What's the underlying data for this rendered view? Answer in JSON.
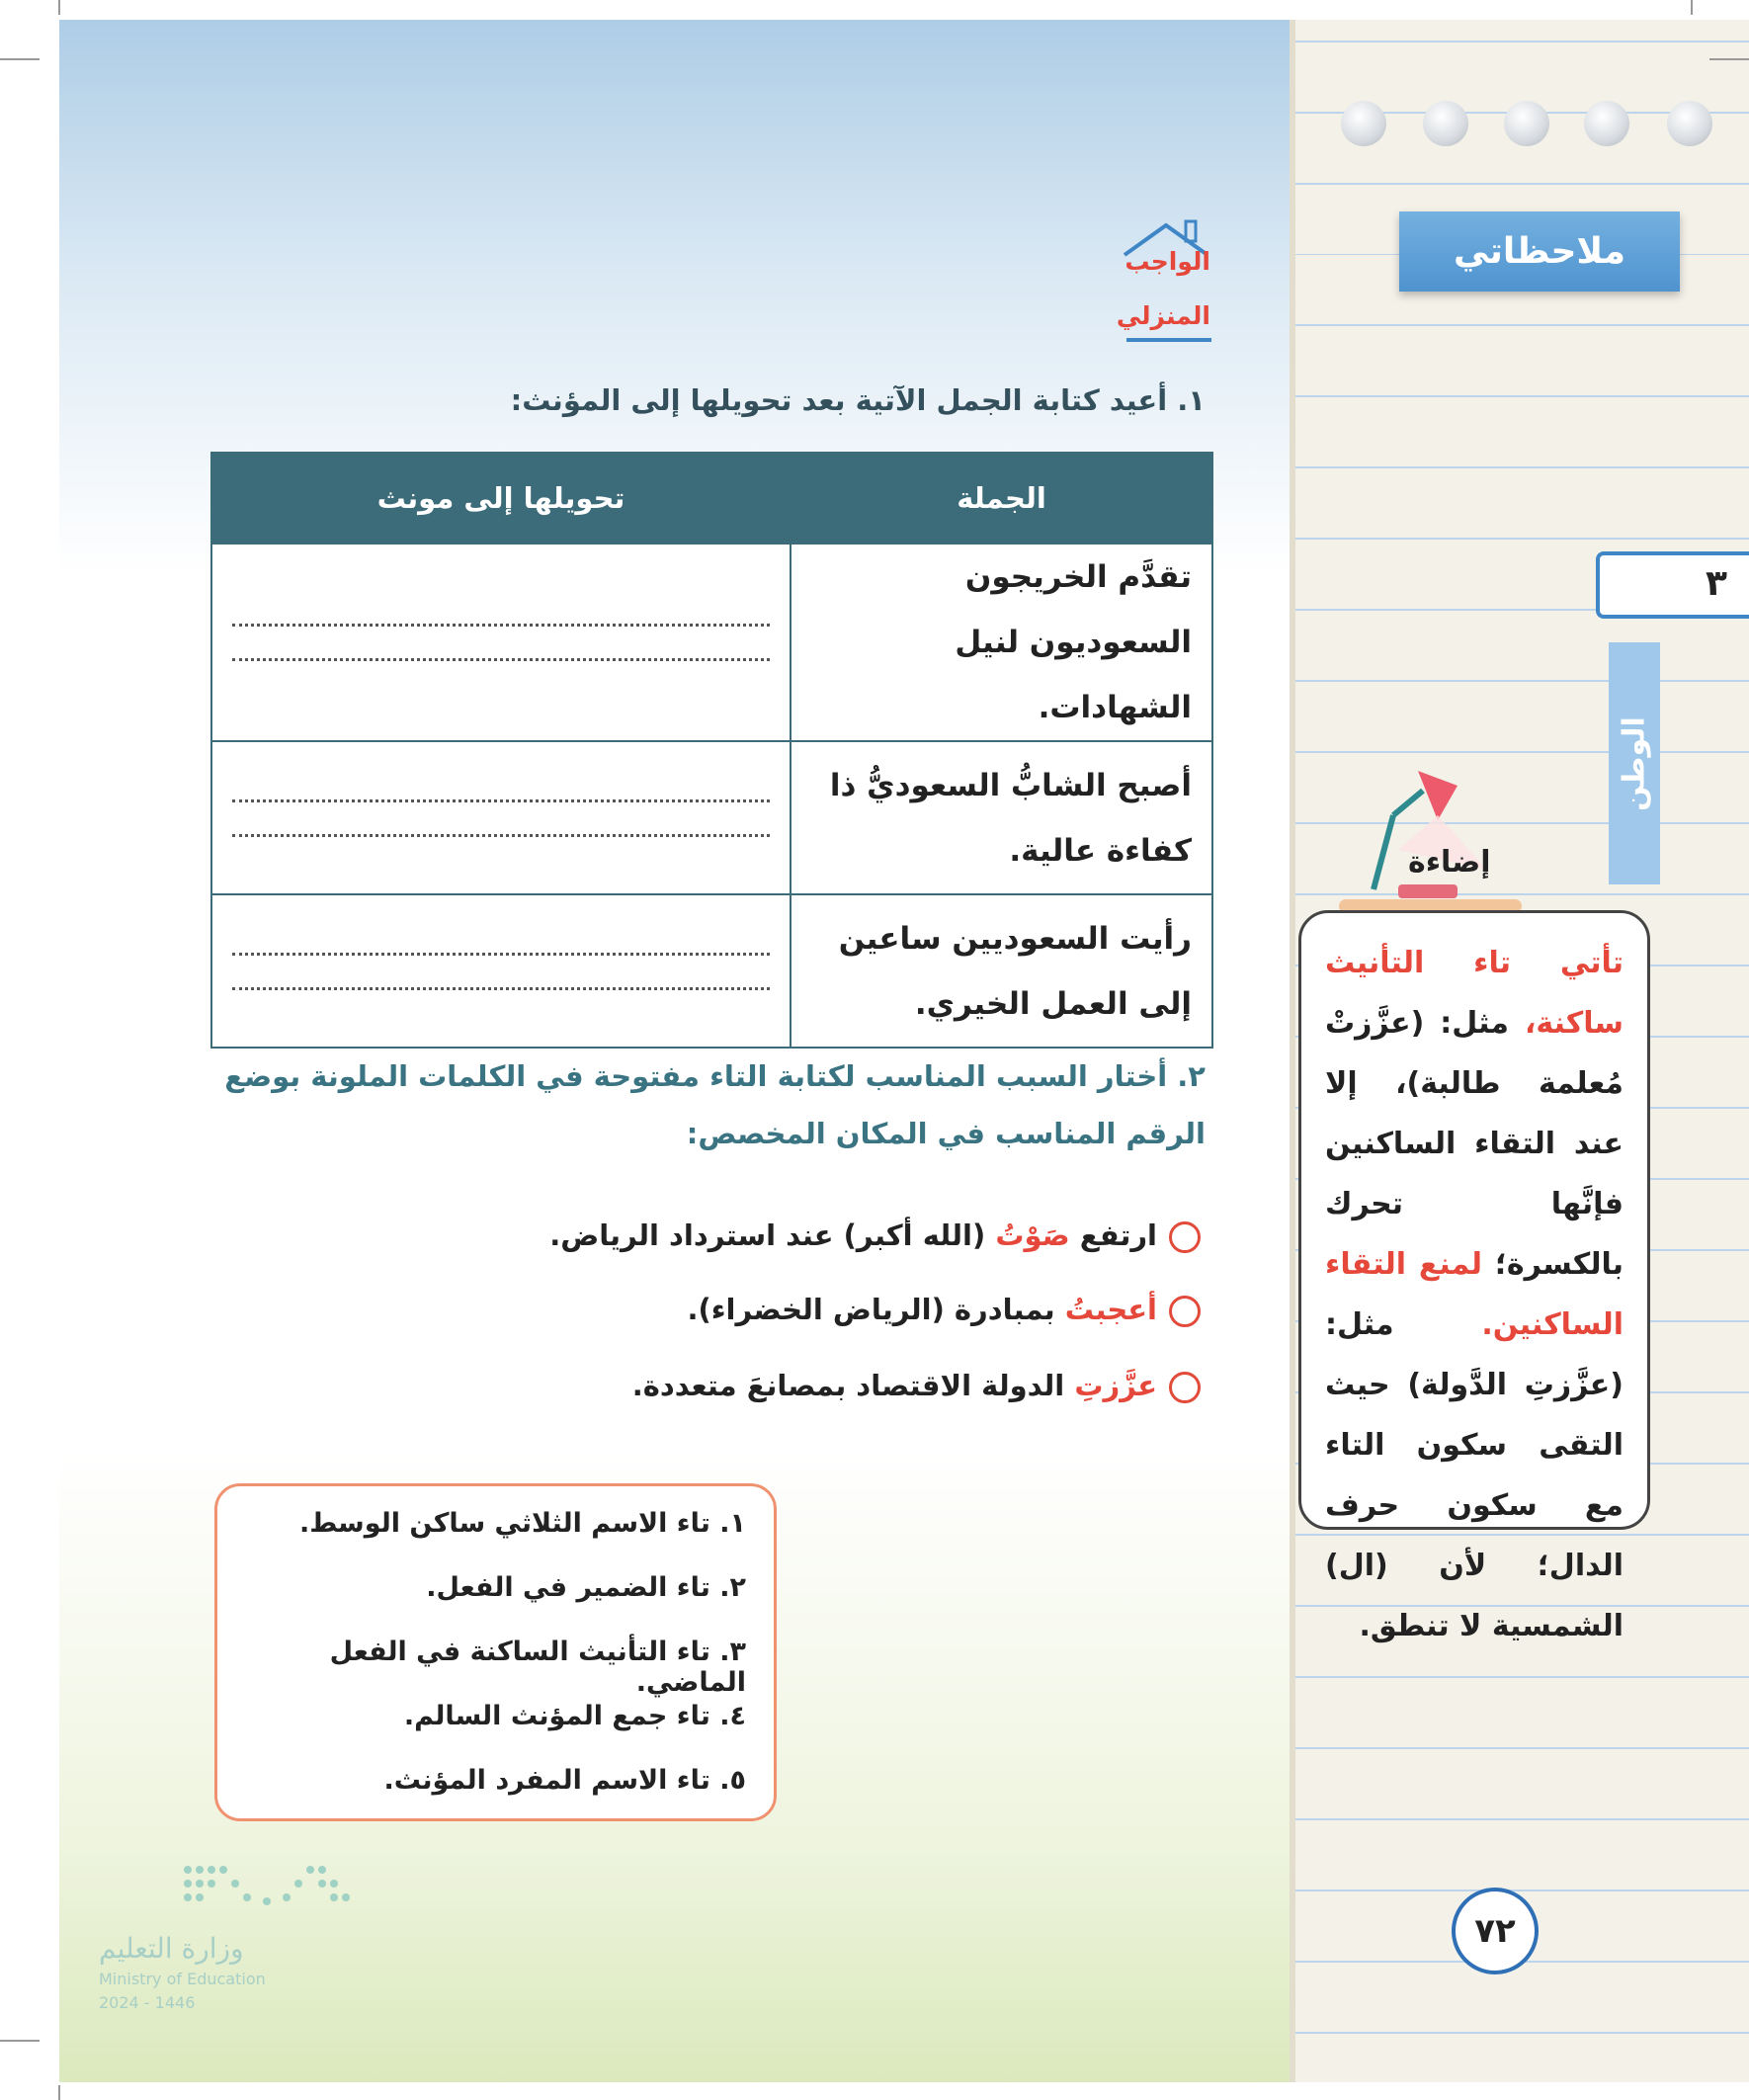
{
  "homework_badge": {
    "line1": "الواجب",
    "line2": "المنزلي"
  },
  "question1": {
    "text": "١. أعيد كتابة الجمل الآتية بعد تحويلها إلى المؤنث:",
    "table": {
      "headers": [
        "الجملة",
        "تحويلها إلى مونث"
      ],
      "rows": [
        "تقدَّم الخريجون السعوديون لنيل الشهادات.",
        "أصبح الشابُّ السعوديُّ ذا كفاءة عالية.",
        "رأيت السعوديين ساعين إلى العمل الخيري."
      ]
    }
  },
  "question2": {
    "text": "٢. أختار السبب المناسب لكتابة التاء مفتوحة في الكلمات الملونة بوضع الرقم المناسب في المكان المخصص:",
    "highlight_color": "#e5483b",
    "items": [
      [
        {
          "text": "ارتفع"
        },
        {
          "text": "صَوْتُ",
          "highlight": true
        },
        {
          "text": "(الله أكبر) عند استرداد الرياض."
        }
      ],
      [
        {
          "text": "أعجبتُ",
          "highlight": true
        },
        {
          "text": "بمبادرة (الرياض الخضراء)."
        }
      ],
      [
        {
          "text": "عزَّزتِ",
          "highlight": true
        },
        {
          "text": "الدولة الاقتصاد بمصانعَ متعددة."
        }
      ]
    ]
  },
  "reasons": [
    "١. تاء الاسم الثلاثي ساكن الوسط.",
    "٢. تاء الضمير في الفعل.",
    "٣. تاء التأنيث الساكنة في الفعل الماضي.",
    "٤. تاء جمع المؤنث السالم.",
    "٥. تاء الاسم المفرد المؤنث."
  ],
  "sidebar": {
    "notes_title": "ملاحظاتي",
    "unit_number": "٣",
    "unit_tab": "الوطن",
    "tip_title": "إضاءة",
    "tip": [
      {
        "text": "تأتي تاء التأنيث ساكنة،",
        "highlight": true
      },
      {
        "text": "مثل: (عزَّزتْ مُعلمة طالبة)، إلا عند التقاء الساكنين فإنَّها تحرك بالكسرة؛"
      },
      {
        "text": "لمنع التقاء الساكنين.",
        "highlight": true
      },
      {
        "text": "مثل: (عزَّزتِ الدَّولة) حيث التقى سكون التاء مع سكون حرف الدال؛ لأن (ال) الشمسية لا تنطق."
      }
    ]
  },
  "page_number": "٧٢",
  "logo": {
    "arabic": "وزارة التعليم",
    "english": "Ministry of Education",
    "year": "2024 - 1446"
  }
}
